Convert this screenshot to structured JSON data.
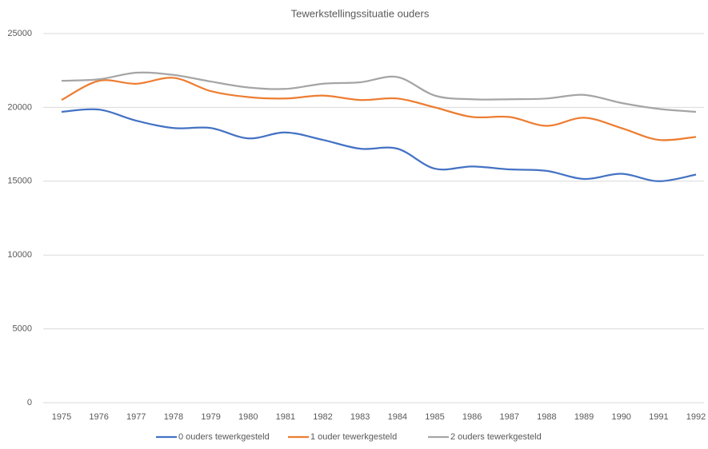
{
  "chart_data": {
    "type": "line",
    "title": "Tewerkstellingssituatie ouders",
    "categories": [
      "1975",
      "1976",
      "1977",
      "1978",
      "1979",
      "1980",
      "1981",
      "1982",
      "1983",
      "1984",
      "1985",
      "1986",
      "1987",
      "1988",
      "1989",
      "1990",
      "1991",
      "1992"
    ],
    "series": [
      {
        "name": "0 ouders tewerkgesteld",
        "color": "#4472c4",
        "values": [
          19700,
          19850,
          19100,
          18600,
          18600,
          17900,
          18300,
          17800,
          17200,
          17200,
          15850,
          16000,
          15800,
          15700,
          15150,
          15500,
          15000,
          15450
        ]
      },
      {
        "name": "1 ouder tewerkgesteld",
        "color": "#ed7d31",
        "values": [
          20500,
          21800,
          21600,
          22000,
          21100,
          20700,
          20600,
          20800,
          20500,
          20600,
          20000,
          19350,
          19350,
          18750,
          19300,
          18600,
          17800,
          18000
        ]
      },
      {
        "name": "2 ouders tewerkgesteld",
        "color": "#a5a5a5",
        "values": [
          21800,
          21900,
          22350,
          22200,
          21750,
          21350,
          21250,
          21600,
          21700,
          22050,
          20800,
          20550,
          20550,
          20600,
          20850,
          20300,
          19900,
          19700
        ]
      }
    ],
    "ylim": [
      0,
      25000
    ],
    "yticks": [
      0,
      5000,
      10000,
      15000,
      20000,
      25000
    ],
    "grid": true,
    "legend": "bottom"
  }
}
